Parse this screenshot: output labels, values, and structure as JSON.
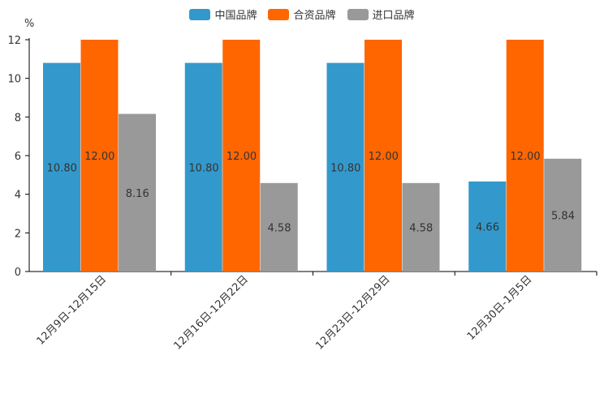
{
  "chart_data": {
    "type": "bar",
    "title": "",
    "xlabel": "",
    "ylabel": "%",
    "ylim": [
      0,
      12
    ],
    "yticks": [
      0,
      2,
      4,
      6,
      8,
      10,
      12
    ],
    "categories": [
      "12月9日-12月15日",
      "12月16日-12月22日",
      "12月23日-12月29日",
      "12月30日-1月5日"
    ],
    "series": [
      {
        "name": "中国品牌",
        "color": "#3399CC",
        "values": [
          10.8,
          10.8,
          10.8,
          4.66
        ],
        "labels": [
          "10.80",
          "10.80",
          "10.80",
          "4.66"
        ]
      },
      {
        "name": "合资品牌",
        "color": "#FF6600",
        "values": [
          12.0,
          12.0,
          12.0,
          12.0
        ],
        "labels": [
          "12.00",
          "12.00",
          "12.00",
          "12.00"
        ]
      },
      {
        "name": "进口品牌",
        "color": "#999999",
        "values": [
          8.16,
          4.58,
          4.58,
          5.84
        ],
        "labels": [
          "8.16",
          "4.58",
          "4.58",
          "5.84"
        ]
      }
    ],
    "legend_position": "top-center",
    "grid": false
  }
}
